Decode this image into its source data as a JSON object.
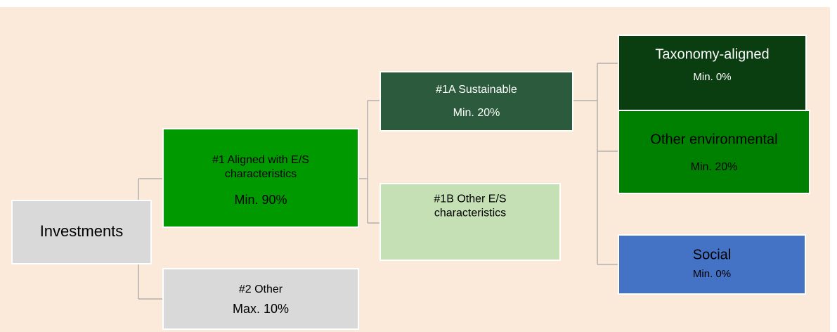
{
  "nodes": [
    {
      "lines": [
        "Investments"
      ]
    },
    {
      "lines": [
        "#1 Aligned with E/S",
        "characteristics",
        "Min. 90%"
      ]
    },
    {
      "lines": [
        "#2 Other",
        "Max. 10%"
      ]
    },
    {
      "lines": [
        "#1A Sustainable",
        "Min. 20%"
      ]
    },
    {
      "lines": [
        "#1B Other E/S",
        "characteristics"
      ]
    },
    {
      "lines": [
        "Taxonomy-aligned",
        "Min. 0%"
      ]
    },
    {
      "lines": [
        "Other environmental",
        "Min. 20%"
      ]
    },
    {
      "lines": [
        "Social",
        "Min. 0%"
      ]
    }
  ]
}
